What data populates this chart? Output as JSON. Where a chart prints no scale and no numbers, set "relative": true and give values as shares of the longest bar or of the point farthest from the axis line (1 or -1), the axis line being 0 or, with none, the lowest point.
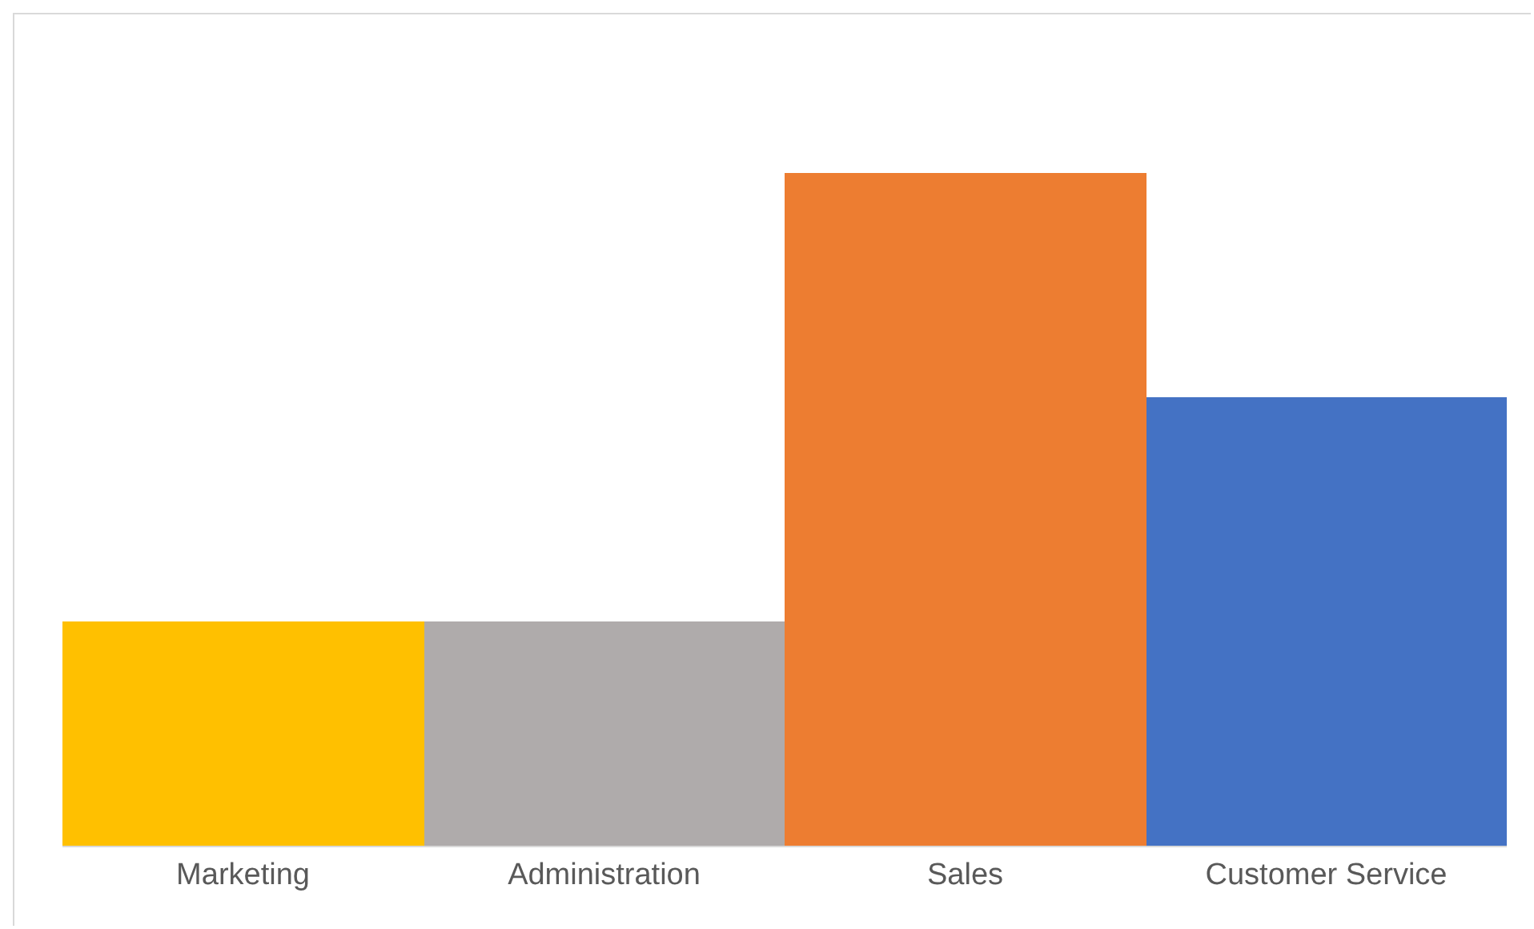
{
  "chart_data": {
    "type": "bar",
    "relative": true,
    "categories": [
      "Marketing",
      "Administration",
      "Sales",
      "Customer Service"
    ],
    "values": [
      0.333,
      0.333,
      1,
      0.667
    ],
    "colors": [
      "#ffc000",
      "#afabab",
      "#ed7d31",
      "#4472c4"
    ],
    "grid": false
  }
}
